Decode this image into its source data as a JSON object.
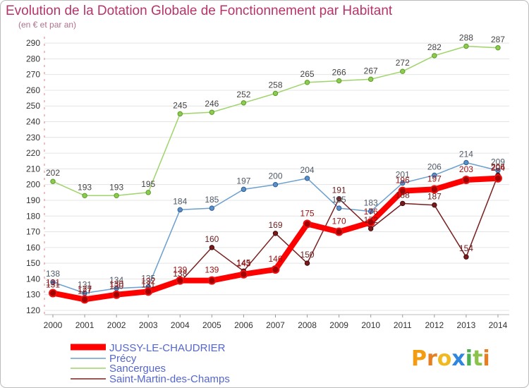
{
  "chart_data": {
    "type": "line",
    "title": "Evolution de la Dotation Globale de Fonctionnement par Habitant",
    "subtitle": "(en € et par an)",
    "xlabel": "",
    "ylabel": "",
    "x": [
      "2000",
      "2001",
      "2002",
      "2003",
      "2004",
      "2005",
      "2006",
      "2007",
      "2008",
      "2009",
      "2010",
      "2011",
      "2012",
      "2013",
      "2014"
    ],
    "ylim": [
      120,
      290
    ],
    "yticks": [
      120,
      130,
      140,
      150,
      160,
      170,
      180,
      190,
      200,
      210,
      220,
      230,
      240,
      250,
      260,
      270,
      280,
      290
    ],
    "grid": true,
    "legend_position": "bottom-left",
    "series": [
      {
        "name": "JUSSY-LE-CHAUDRIER",
        "color": "#ff0000",
        "label_color": "#9a1010",
        "values": [
          131,
          127,
          130,
          132,
          139,
          139,
          143,
          146,
          175,
          170,
          176,
          196,
          197,
          203,
          204
        ]
      },
      {
        "name": "Précy",
        "color": "#6a9fd0",
        "label_color": "#505a66",
        "values": [
          138,
          131,
          134,
          135,
          184,
          185,
          197,
          200,
          204,
          185,
          183,
          201,
          206,
          214,
          209
        ]
      },
      {
        "name": "Sancergues",
        "color": "#9fd46a",
        "label_color": "#444444",
        "values": [
          202,
          193,
          193,
          195,
          245,
          246,
          252,
          258,
          265,
          266,
          267,
          272,
          282,
          288,
          287
        ]
      },
      {
        "name": "Saint-Martin-des-Champs",
        "color": "#7a2020",
        "label_color": "#6a1c1c",
        "values": [
          131,
          127,
          130,
          131,
          138,
          160,
          145,
          169,
          150,
          191,
          172,
          188,
          187,
          154,
          206
        ]
      }
    ]
  },
  "branding": {
    "logo_text": "Proxiti",
    "logo_colors": [
      "#f39c12",
      "#e67e22",
      "#f1b81f",
      "#2e86de",
      "#4caf50",
      "#8bc34a",
      "#e67e22"
    ]
  }
}
